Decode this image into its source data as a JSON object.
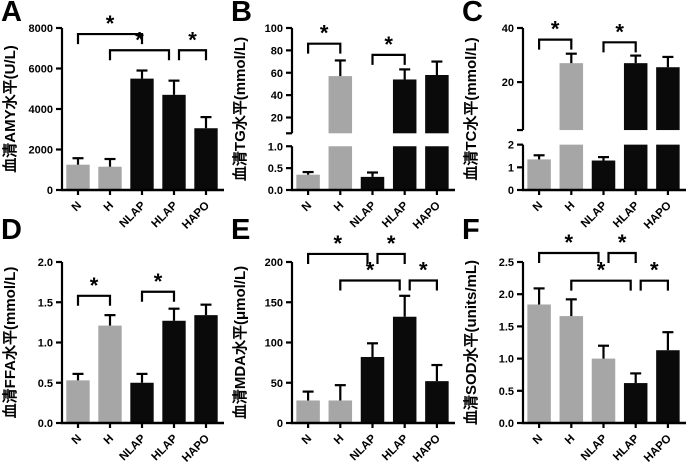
{
  "figure": {
    "background": "#ffffff",
    "axis_color": "#000000",
    "bar_colors": {
      "gray": "#a6a6a6",
      "black": "#0a0a0a"
    },
    "sig_symbol": "*",
    "categories": [
      "N",
      "H",
      "NLAP",
      "HLAP",
      "HAPO"
    ]
  },
  "chart_data": [
    {
      "panel": "A",
      "type": "bar",
      "ylabel": "血清AMY水平(U/L)",
      "categories": [
        "N",
        "H",
        "NLAP",
        "HLAP",
        "HAPO"
      ],
      "values": [
        1250,
        1150,
        5500,
        4700,
        3050
      ],
      "errors": [
        320,
        380,
        400,
        700,
        550
      ],
      "colors": [
        "gray",
        "gray",
        "black",
        "black",
        "black"
      ],
      "axis": {
        "type": "linear",
        "min": 0,
        "max": 8000,
        "ticks": [
          0,
          2000,
          4000,
          6000,
          8000
        ],
        "tick_labels": [
          "0",
          "2000",
          "4000",
          "6000",
          "8000"
        ]
      },
      "significance": [
        {
          "from": "N",
          "to": "NLAP",
          "label": "*",
          "level": 7700
        },
        {
          "from": "H",
          "to": "HLAP",
          "label": "*",
          "level": 6900,
          "dx2": -5
        },
        {
          "from": "HLAP",
          "to": "HAPO",
          "label": "*",
          "level": 6900,
          "dx1": 5
        }
      ]
    },
    {
      "panel": "B",
      "type": "bar",
      "ylabel": "血清TG水平(mmol/L)",
      "categories": [
        "N",
        "H",
        "NLAP",
        "HLAP",
        "HAPO"
      ],
      "values": [
        0.35,
        57,
        0.3,
        54,
        58
      ],
      "errors": [
        0.06,
        14,
        0.1,
        9,
        12
      ],
      "colors": [
        "gray",
        "gray",
        "black",
        "black",
        "black"
      ],
      "axis": {
        "type": "broken",
        "lower": {
          "min": 0,
          "max": 1.0,
          "ticks": [
            0,
            0.5,
            1.0
          ],
          "tick_labels": [
            "0.0",
            "0.5",
            "1.0"
          ],
          "height_frac": 0.27
        },
        "gap_frac": 0.08,
        "upper": {
          "ticks": [
            20,
            40,
            60,
            80,
            100
          ],
          "tick_labels": [
            "20",
            "40",
            "60",
            "80",
            "100"
          ],
          "pad_below_frac": 0.15
        }
      },
      "significance": [
        {
          "from": "N",
          "to": "H",
          "label": "*",
          "level": 86
        },
        {
          "from": "NLAP",
          "to": "HLAP",
          "label": "*",
          "level": 76
        }
      ]
    },
    {
      "panel": "C",
      "type": "bar",
      "ylabel": "血清TC水平(mmol/L)",
      "categories": [
        "N",
        "H",
        "NLAP",
        "HLAP",
        "HAPO"
      ],
      "values": [
        1.35,
        27,
        1.3,
        27,
        25.5
      ],
      "errors": [
        0.18,
        3.5,
        0.15,
        2.8,
        3.8
      ],
      "colors": [
        "gray",
        "gray",
        "black",
        "black",
        "black"
      ],
      "axis": {
        "type": "broken",
        "lower": {
          "min": 0,
          "max": 2,
          "ticks": [
            0,
            1,
            2
          ],
          "tick_labels": [
            "0",
            "1",
            "2"
          ],
          "height_frac": 0.28
        },
        "gap_frac": 0.09,
        "upper": {
          "ticks": [
            20,
            40
          ],
          "tick_labels": [
            "20",
            "40"
          ],
          "pad_below_frac": 0.47
        }
      },
      "significance": [
        {
          "from": "N",
          "to": "H",
          "label": "*",
          "level": 35.7
        },
        {
          "from": "NLAP",
          "to": "HLAP",
          "label": "*",
          "level": 34.7
        }
      ]
    },
    {
      "panel": "D",
      "type": "bar",
      "ylabel": "血清FFA水平(mmol/L)",
      "categories": [
        "N",
        "H",
        "NLAP",
        "HLAP",
        "HAPO"
      ],
      "values": [
        0.53,
        1.21,
        0.5,
        1.27,
        1.34
      ],
      "errors": [
        0.08,
        0.13,
        0.11,
        0.15,
        0.13
      ],
      "colors": [
        "gray",
        "gray",
        "black",
        "black",
        "black"
      ],
      "axis": {
        "type": "linear",
        "min": 0,
        "max": 2.0,
        "ticks": [
          0,
          0.5,
          1.0,
          1.5,
          2.0
        ],
        "tick_labels": [
          "0.0",
          "0.5",
          "1.0",
          "1.5",
          "2.0"
        ]
      },
      "significance": [
        {
          "from": "N",
          "to": "H",
          "label": "*",
          "level": 1.58
        },
        {
          "from": "NLAP",
          "to": "HLAP",
          "label": "*",
          "level": 1.63
        }
      ]
    },
    {
      "panel": "E",
      "type": "bar",
      "ylabel": "血清MDA水平(μmol/L)",
      "categories": [
        "N",
        "H",
        "NLAP",
        "HLAP",
        "HAPO"
      ],
      "values": [
        28,
        28,
        82,
        132,
        52
      ],
      "errors": [
        11,
        19,
        17,
        26,
        20
      ],
      "colors": [
        "gray",
        "gray",
        "black",
        "black",
        "black"
      ],
      "axis": {
        "type": "linear",
        "min": 0,
        "max": 200,
        "ticks": [
          0,
          50,
          100,
          150,
          200
        ],
        "tick_labels": [
          "0",
          "50",
          "100",
          "150",
          "200"
        ]
      },
      "significance": [
        {
          "from": "N",
          "to": "NLAP",
          "label": "*",
          "level": 210,
          "dx2": -5
        },
        {
          "from": "NLAP",
          "to": "HLAP",
          "label": "*",
          "level": 210,
          "dx1": 5
        },
        {
          "from": "H",
          "to": "HLAP",
          "label": "*",
          "level": 177,
          "dx2": -5
        },
        {
          "from": "HLAP",
          "to": "HAPO",
          "label": "*",
          "level": 177,
          "dx1": 5
        }
      ]
    },
    {
      "panel": "F",
      "type": "bar",
      "ylabel": "血清SOD水平(units/mL)",
      "categories": [
        "N",
        "H",
        "NLAP",
        "HLAP",
        "HAPO"
      ],
      "values": [
        1.84,
        1.66,
        1.0,
        0.62,
        1.13
      ],
      "errors": [
        0.25,
        0.26,
        0.2,
        0.15,
        0.28
      ],
      "colors": [
        "gray",
        "gray",
        "gray",
        "black",
        "black"
      ],
      "axis": {
        "type": "linear",
        "min": 0,
        "max": 2.5,
        "ticks": [
          0,
          0.5,
          1.0,
          1.5,
          2.0,
          2.5
        ],
        "tick_labels": [
          "0.0",
          "0.5",
          "1.0",
          "1.5",
          "2.0",
          "2.5"
        ]
      },
      "significance": [
        {
          "from": "N",
          "to": "NLAP",
          "label": "*",
          "level": 2.64,
          "dx2": -5
        },
        {
          "from": "NLAP",
          "to": "HLAP",
          "label": "*",
          "level": 2.64,
          "dx1": 5
        },
        {
          "from": "H",
          "to": "HLAP",
          "label": "*",
          "level": 2.21,
          "dx2": -5
        },
        {
          "from": "HLAP",
          "to": "HAPO",
          "label": "*",
          "level": 2.21,
          "dx1": 5
        }
      ]
    }
  ]
}
